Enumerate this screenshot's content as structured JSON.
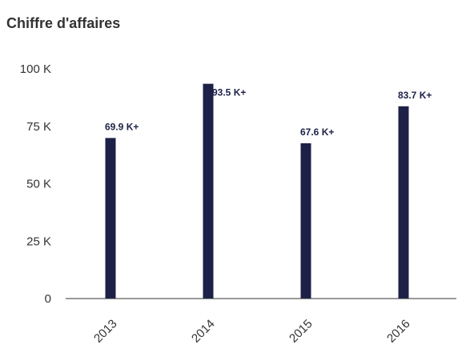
{
  "title": "Chiffre d'affaires",
  "chart_data": {
    "type": "bar",
    "title": "Chiffre d'affaires",
    "xlabel": "",
    "ylabel": "",
    "categories": [
      "2013",
      "2014",
      "2015",
      "2016"
    ],
    "values": [
      69.9,
      93.5,
      67.6,
      83.7
    ],
    "data_labels": [
      "69.9 K+",
      "93.5 K+",
      "67.6 K+",
      "83.7 K+"
    ],
    "ylim": [
      0,
      100
    ],
    "y_ticks": [
      0,
      25,
      50,
      75,
      100
    ],
    "y_tick_labels": [
      "0",
      "25 K",
      "50 K",
      "75 K",
      "100 K"
    ],
    "grid": false,
    "bar_color": "#1d2147",
    "axis_color": "#333333"
  }
}
